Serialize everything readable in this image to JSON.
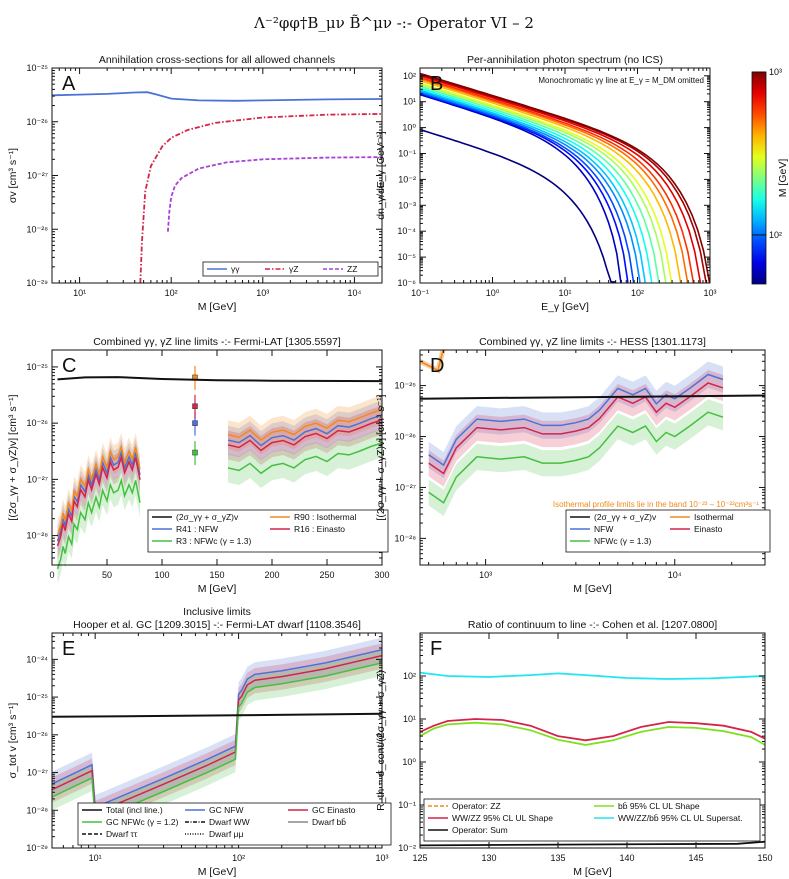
{
  "figure_title": "Λ⁻²φφ†B_μν B̃^μν -:- Operator VI – 2",
  "colors": {
    "blue": "#4c72d8",
    "red": "#d4244a",
    "purple": "#a940d8",
    "green": "#44c040",
    "orange": "#f08a1c",
    "black": "#111111",
    "cyan": "#22e5f0",
    "lime": "#80e020"
  },
  "chart_data": [
    {
      "id": "A",
      "type": "line",
      "letter": "A",
      "title": "Annihilation cross-sections for all allowed channels",
      "xlabel": "M [GeV]",
      "ylabel": "σv [cm³ s⁻¹]",
      "xscale": "log",
      "yscale": "log",
      "xlim": [
        5,
        20000
      ],
      "ylim": [
        1e-29,
        1e-25
      ],
      "xticks": [
        {
          "v": 10,
          "l": "10¹"
        },
        {
          "v": 100,
          "l": "10²"
        },
        {
          "v": 1000,
          "l": "10³"
        },
        {
          "v": 10000,
          "l": "10⁴"
        }
      ],
      "yticks": [
        {
          "v": 1e-29,
          "l": "10⁻²⁹"
        },
        {
          "v": 1e-28,
          "l": "10⁻²⁸"
        },
        {
          "v": 1e-27,
          "l": "10⁻²⁷"
        },
        {
          "v": 1e-26,
          "l": "10⁻²⁶"
        },
        {
          "v": 1e-25,
          "l": "10⁻²⁵"
        }
      ],
      "legend_position": "lower-right",
      "series": [
        {
          "name": "γγ",
          "color": "#4c72d8",
          "dash": "",
          "x": [
            5,
            10,
            20,
            40,
            55,
            70,
            100,
            200,
            500,
            1000,
            5000,
            20000
          ],
          "y": [
            3.1e-26,
            3.2e-26,
            3.3e-26,
            3.5e-26,
            3.55e-26,
            3.2e-26,
            2.7e-26,
            2.5e-26,
            2.45e-26,
            2.5e-26,
            2.6e-26,
            2.65e-26
          ]
        },
        {
          "name": "γZ",
          "color": "#d4244a",
          "dash": "5,2,1.5,2",
          "x": [
            46,
            48,
            52,
            60,
            80,
            100,
            150,
            300,
            1000,
            5000,
            20000
          ],
          "y": [
            1e-29,
            6e-29,
            5e-28,
            1.5e-27,
            3.5e-27,
            5e-27,
            7e-27,
            9.5e-27,
            1.2e-26,
            1.35e-26,
            1.4e-26
          ]
        },
        {
          "name": "ZZ",
          "color": "#a940d8",
          "dash": "4,2",
          "x": [
            92,
            95,
            100,
            110,
            130,
            200,
            400,
            1000,
            5000,
            20000
          ],
          "y": [
            9e-29,
            2e-28,
            4e-28,
            6.5e-28,
            9e-28,
            1.35e-27,
            1.75e-27,
            2e-27,
            2.15e-27,
            2.2e-27
          ]
        }
      ]
    },
    {
      "id": "B",
      "type": "line",
      "letter": "B",
      "title": "Per-annihilation photon spectrum (no ICS)",
      "annotation": "Monochromatic γγ line at E_γ = M_DM omitted",
      "xlabel": "E_γ [GeV]",
      "ylabel": "dn_γ/dE_γ [GeV⁻¹]",
      "xscale": "log",
      "yscale": "log",
      "xlim": [
        0.1,
        1000
      ],
      "ylim": [
        1e-06,
        200
      ],
      "xticks": [
        {
          "v": 0.1,
          "l": "10⁻¹"
        },
        {
          "v": 1,
          "l": "10⁰"
        },
        {
          "v": 10,
          "l": "10¹"
        },
        {
          "v": 100,
          "l": "10²"
        },
        {
          "v": 1000,
          "l": "10³"
        }
      ],
      "yticks": [
        {
          "v": 1e-06,
          "l": "10⁻⁶"
        },
        {
          "v": 1e-05,
          "l": "10⁻⁵"
        },
        {
          "v": 0.0001,
          "l": "10⁻⁴"
        },
        {
          "v": 0.001,
          "l": "10⁻³"
        },
        {
          "v": 0.01,
          "l": "10⁻²"
        },
        {
          "v": 0.1,
          "l": "10⁻¹"
        },
        {
          "v": 1,
          "l": "10⁰"
        },
        {
          "v": 10,
          "l": "10¹"
        },
        {
          "v": 100,
          "l": "10²"
        }
      ],
      "colorbar": {
        "label": "M [GeV]",
        "range": [
          50,
          1000
        ],
        "ticks": [
          {
            "v": 100,
            "l": "10²"
          },
          {
            "v": 1000,
            "l": "10³"
          }
        ]
      },
      "masses": [
        50,
        60,
        75,
        90,
        110,
        130,
        160,
        200,
        250,
        300,
        400,
        500,
        600,
        750,
        900,
        1000
      ]
    },
    {
      "id": "C",
      "type": "line",
      "letter": "C",
      "title": "Combined γγ, γZ line limits -:- Fermi-LAT [1305.5597]",
      "xlabel": "M [GeV]",
      "ylabel": "[(2σ_γγ + σ_γZ)v] [cm³ s⁻¹]",
      "xscale": "linear",
      "yscale": "log",
      "xlim": [
        0,
        300
      ],
      "ylim": [
        3e-29,
        2e-25
      ],
      "xticks": [
        {
          "v": 0,
          "l": "0"
        },
        {
          "v": 50,
          "l": "50"
        },
        {
          "v": 100,
          "l": "100"
        },
        {
          "v": 150,
          "l": "150"
        },
        {
          "v": 200,
          "l": "200"
        },
        {
          "v": 250,
          "l": "250"
        },
        {
          "v": 300,
          "l": "300"
        }
      ],
      "yticks": [
        {
          "v": 1e-28,
          "l": "10⁻²⁸"
        },
        {
          "v": 1e-27,
          "l": "10⁻²⁷"
        },
        {
          "v": 1e-26,
          "l": "10⁻²⁶"
        },
        {
          "v": 1e-25,
          "l": "10⁻²⁵"
        }
      ],
      "legend": [
        {
          "name": "(2σ_γγ + σ_γZ)v",
          "color": "#111111"
        },
        {
          "name": "R41 : NFW",
          "color": "#4c72d8"
        },
        {
          "name": "R3 : NFWc (γ = 1.3)",
          "color": "#44c040"
        },
        {
          "name": "R90 : Isothermal",
          "color": "#f08a1c"
        },
        {
          "name": "R16 : Einasto",
          "color": "#d4244a"
        }
      ],
      "theory": {
        "x": [
          5,
          30,
          60,
          100,
          150,
          200,
          300
        ],
        "y": [
          6e-26,
          6.5e-26,
          6.6e-26,
          6.1e-26,
          5.8e-26,
          5.7e-26,
          5.6e-26
        ]
      },
      "limit_x": [
        5,
        8,
        10,
        12,
        15,
        18,
        20,
        23,
        26,
        30,
        33,
        36,
        40,
        43,
        46,
        50,
        53,
        56,
        60,
        63,
        66,
        70,
        73,
        76,
        80
      ],
      "limit_nfw": [
        8e-29,
        1.2e-28,
        2e-28,
        1.5e-28,
        3e-28,
        2.2e-28,
        5e-28,
        4e-28,
        8e-28,
        6e-28,
        1.2e-27,
        8e-28,
        1.5e-27,
        1e-27,
        2e-27,
        1.3e-27,
        2.5e-27,
        1.8e-27,
        2e-27,
        3e-27,
        1.6e-27,
        2.5e-27,
        1.8e-27,
        3e-27,
        1.2e-27
      ],
      "limit2_x": [
        160,
        170,
        180,
        190,
        200,
        210,
        220,
        230,
        240,
        250,
        260,
        270,
        280,
        290,
        300
      ],
      "limit2_nfw": [
        5e-27,
        4.5e-27,
        6e-27,
        4e-27,
        5.5e-27,
        6e-27,
        5e-27,
        7e-27,
        8e-27,
        6.5e-27,
        9e-27,
        8.5e-27,
        1e-26,
        1.2e-26,
        1.4e-26
      ],
      "points": [
        {
          "x": 130,
          "nfw": 1e-26,
          "iso": 6.5e-26,
          "ein": 2e-26,
          "nfwc": 3e-27
        }
      ]
    },
    {
      "id": "D",
      "type": "line",
      "letter": "D",
      "title": "Combined γγ, γZ line limits -:- HESS [1301.1173]",
      "note": "Isothermal profile limits lie in the band 10⁻²³ – 10⁻²²cm³s⁻¹",
      "xlabel": "M [GeV]",
      "ylabel": "[(2σ_γγ + σ_γZ)v] [cm³ s⁻¹]",
      "xscale": "log",
      "yscale": "log",
      "xlim": [
        450,
        30000
      ],
      "ylim": [
        3e-29,
        5e-25
      ],
      "xticks": [
        {
          "v": 1000,
          "l": "10³"
        },
        {
          "v": 10000,
          "l": "10⁴"
        }
      ],
      "yticks": [
        {
          "v": 1e-28,
          "l": "10⁻²⁸"
        },
        {
          "v": 1e-27,
          "l": "10⁻²⁷"
        },
        {
          "v": 1e-26,
          "l": "10⁻²⁶"
        },
        {
          "v": 1e-25,
          "l": "10⁻²⁵"
        }
      ],
      "legend": [
        {
          "name": "(2σ_γγ + σ_γZ)v",
          "color": "#111111"
        },
        {
          "name": "NFW",
          "color": "#4c72d8"
        },
        {
          "name": "NFWc (γ = 1.3)",
          "color": "#44c040"
        },
        {
          "name": "Isothermal",
          "color": "#f08a1c"
        },
        {
          "name": "Einasto",
          "color": "#d4244a"
        }
      ],
      "theory": {
        "x": [
          450,
          1000,
          5000,
          30000
        ],
        "y": [
          5.5e-26,
          5.7e-26,
          6e-26,
          6.4e-26
        ]
      },
      "limit_x": [
        500,
        600,
        700,
        900,
        1200,
        1600,
        2000,
        2500,
        3000,
        3500,
        4000,
        5000,
        6000,
        7000,
        8000,
        9000,
        10000,
        12000,
        15000,
        18000
      ],
      "limit_nfw": [
        4e-27,
        2.5e-27,
        8e-27,
        2e-26,
        1.8e-26,
        2e-26,
        1.5e-26,
        1.5e-26,
        1.7e-26,
        2e-26,
        3e-26,
        8e-26,
        6e-26,
        8e-26,
        4e-26,
        6e-26,
        5e-26,
        8e-26,
        1.5e-25,
        1.2e-25
      ]
    },
    {
      "id": "E",
      "type": "line",
      "letter": "E",
      "title": "Inclusive limits",
      "subtitle": "Hooper et al. GC [1209.3015] -:- Fermi-LAT dwarf [1108.3546]",
      "xlabel": "M [GeV]",
      "ylabel": "σ_tot v [cm³ s⁻¹]",
      "xscale": "log",
      "yscale": "log",
      "xlim": [
        5,
        1000
      ],
      "ylim": [
        1e-29,
        5e-24
      ],
      "xticks": [
        {
          "v": 10,
          "l": "10¹"
        },
        {
          "v": 100,
          "l": "10²"
        },
        {
          "v": 1000,
          "l": "10³"
        }
      ],
      "yticks": [
        {
          "v": 1e-29,
          "l": "10⁻²⁹"
        },
        {
          "v": 1e-28,
          "l": "10⁻²⁸"
        },
        {
          "v": 1e-27,
          "l": "10⁻²⁷"
        },
        {
          "v": 1e-26,
          "l": "10⁻²⁶"
        },
        {
          "v": 1e-25,
          "l": "10⁻²⁵"
        },
        {
          "v": 1e-24,
          "l": "10⁻²⁴"
        }
      ],
      "legend": [
        {
          "name": "Total (incl line.)",
          "color": "#111111",
          "dash": ""
        },
        {
          "name": "GC NFWc (γ = 1.2)",
          "color": "#44c040",
          "dash": ""
        },
        {
          "name": "Dwarf ττ",
          "color": "#111111",
          "dash": "4,2"
        },
        {
          "name": "GC NFW",
          "color": "#4c72d8",
          "dash": ""
        },
        {
          "name": "Dwarf WW",
          "color": "#111111",
          "dash": "4,1.5,1,1.5"
        },
        {
          "name": "Dwarf μμ",
          "color": "#111111",
          "dash": "1,1.5"
        },
        {
          "name": "GC Einasto",
          "color": "#d4244a",
          "dash": ""
        },
        {
          "name": "Dwarf bb̄",
          "color": "#888888",
          "dash": ""
        }
      ],
      "theory": {
        "x": [
          5,
          100,
          1000
        ],
        "y": [
          3e-26,
          3.3e-26,
          3.6e-26
        ]
      }
    },
    {
      "id": "F",
      "type": "line",
      "letter": "F",
      "title": "Ratio of continuum to line -:- Cohen et al. [1207.0800]",
      "xlabel": "M [GeV]",
      "ylabel": "R_th = σ_cont/(2σ_γγ + σ_γZ)",
      "xscale": "linear",
      "yscale": "log",
      "xlim": [
        125,
        150
      ],
      "ylim": [
        0.01,
        1000
      ],
      "xticks": [
        {
          "v": 125,
          "l": "125"
        },
        {
          "v": 130,
          "l": "130"
        },
        {
          "v": 135,
          "l": "135"
        },
        {
          "v": 140,
          "l": "140"
        },
        {
          "v": 145,
          "l": "145"
        },
        {
          "v": 150,
          "l": "150"
        }
      ],
      "yticks": [
        {
          "v": 0.01,
          "l": "10⁻²"
        },
        {
          "v": 0.1,
          "l": "10⁻¹"
        },
        {
          "v": 1,
          "l": "10⁰"
        },
        {
          "v": 10,
          "l": "10¹"
        },
        {
          "v": 100,
          "l": "10²"
        }
      ],
      "legend": [
        {
          "name": "Operator: ZZ",
          "color": "#f08a1c",
          "dash": "4,2"
        },
        {
          "name": "WW/ZZ 95% CL UL Shape",
          "color": "#d4244a",
          "dash": ""
        },
        {
          "name": "Operator: Sum",
          "color": "#111111",
          "dash": ""
        },
        {
          "name": "bb̄ 95% CL UL Shape",
          "color": "#80e020",
          "dash": ""
        },
        {
          "name": "WW/ZZ/bb̄ 95% CL UL Supersat.",
          "color": "#22e5f0",
          "dash": ""
        }
      ],
      "series": [
        {
          "name": "cyan",
          "color": "#22e5f0",
          "x": [
            125,
            127,
            130,
            133,
            135,
            137,
            140,
            143,
            146,
            150
          ],
          "y": [
            120,
            100,
            95,
            105,
            115,
            105,
            90,
            85,
            88,
            100
          ]
        },
        {
          "name": "red",
          "color": "#d4244a",
          "x": [
            125,
            126,
            127,
            129,
            131,
            133,
            135,
            137,
            139,
            141,
            143,
            145,
            147,
            149,
            150
          ],
          "y": [
            5,
            7,
            9,
            10,
            9.5,
            7,
            4,
            3.2,
            4,
            6.5,
            8.5,
            8,
            7,
            5,
            3.5
          ]
        },
        {
          "name": "lime",
          "color": "#80e020",
          "x": [
            125,
            126,
            127,
            129,
            131,
            133,
            135,
            137,
            139,
            141,
            143,
            145,
            147,
            149,
            150
          ],
          "y": [
            4,
            6,
            7.5,
            8.2,
            7.5,
            5.5,
            3.3,
            2.5,
            3.2,
            5,
            6.5,
            6.2,
            5.2,
            3.8,
            2.5
          ]
        },
        {
          "name": "sum",
          "color": "#111111",
          "x": [
            125,
            135,
            148,
            150
          ],
          "y": [
            0.0115,
            0.012,
            0.0125,
            0.014
          ]
        }
      ]
    }
  ]
}
